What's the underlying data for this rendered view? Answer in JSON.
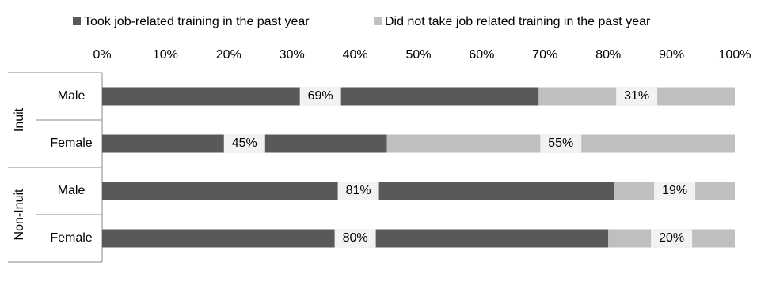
{
  "chart_data": {
    "type": "stacked-bar-horizontal",
    "groups": [
      {
        "label": "Inuit",
        "categories": [
          "Male",
          "Female"
        ]
      },
      {
        "label": "Non-Inuit",
        "categories": [
          "Male",
          "Female"
        ]
      }
    ],
    "series": [
      {
        "name": "Took job-related training in the past year",
        "color": "#595959",
        "values": [
          69,
          45,
          81,
          80
        ],
        "value_labels": [
          "69%",
          "45%",
          "81%",
          "80%"
        ]
      },
      {
        "name": "Did not take job related training in the past year",
        "color": "#bfbfbf",
        "values": [
          31,
          55,
          19,
          20
        ],
        "value_labels": [
          "31%",
          "55%",
          "19%",
          "20%"
        ]
      }
    ],
    "xlim": [
      0,
      100
    ],
    "xticks": [
      {
        "value": 0,
        "label": "0%"
      },
      {
        "value": 10,
        "label": "10%"
      },
      {
        "value": 20,
        "label": "20%"
      },
      {
        "value": 30,
        "label": "30%"
      },
      {
        "value": 40,
        "label": "40%"
      },
      {
        "value": 50,
        "label": "50%"
      },
      {
        "value": 60,
        "label": "60%"
      },
      {
        "value": 70,
        "label": "70%"
      },
      {
        "value": 80,
        "label": "80%"
      },
      {
        "value": 90,
        "label": "90%"
      },
      {
        "value": 100,
        "label": "100%"
      }
    ],
    "legend": "top"
  }
}
